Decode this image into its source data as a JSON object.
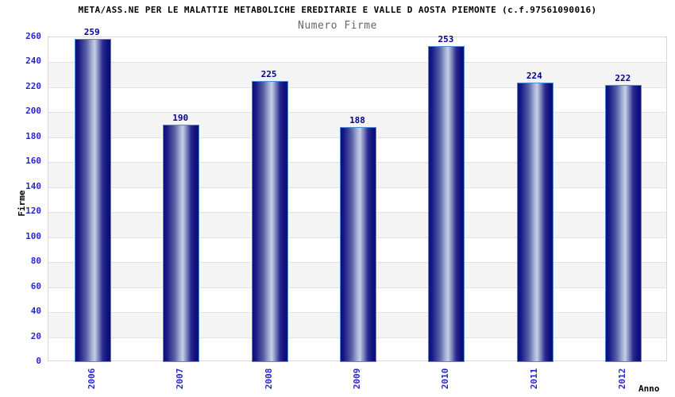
{
  "chart": {
    "title": "META/ASS.NE PER LE MALATTIE METABOLICHE EREDITARIE E VALLE D AOSTA PIEMONTE (c.f.97561090016)",
    "subtitle": "Numero Firme",
    "ylabel": "Firme",
    "xlabel": "Anno"
  },
  "chart_data": {
    "type": "bar",
    "title": "META/ASS.NE PER LE MALATTIE METABOLICHE EREDITARIE E VALLE D AOSTA PIEMONTE (c.f.97561090016)",
    "subtitle": "Numero Firme",
    "xlabel": "Anno",
    "ylabel": "Firme",
    "categories": [
      "2006",
      "2007",
      "2008",
      "2009",
      "2010",
      "2011",
      "2012"
    ],
    "values": [
      259,
      190,
      225,
      188,
      253,
      224,
      222
    ],
    "ylim": [
      0,
      260
    ],
    "ytick_step": 20,
    "grid": true,
    "legend": false,
    "colors": {
      "bar_dark": "#0e0e7a",
      "bar_highlight": "#c6cfe8",
      "bar_border": "#4a90d9",
      "value_label": "#00008c",
      "tick_label": "#2727cc",
      "band": "#f4f4f4",
      "gridline": "#e2e2e2",
      "plot_border": "#d6d6d6",
      "title": "#000000",
      "subtitle": "#666666",
      "background": "#ffffff"
    }
  }
}
